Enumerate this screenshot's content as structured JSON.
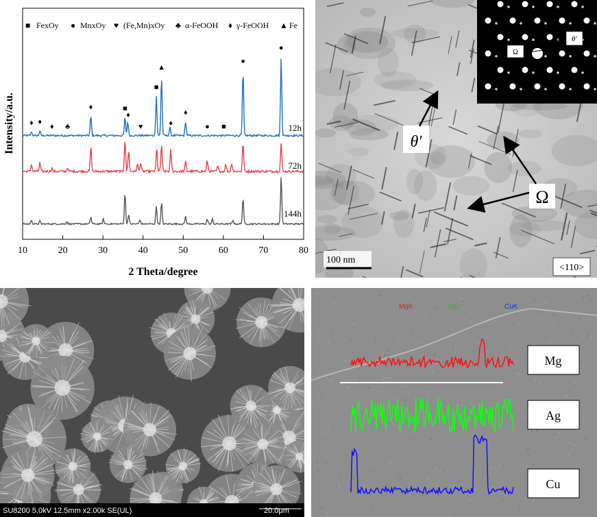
{
  "xrd": {
    "legend": [
      {
        "symbol": "■",
        "label": "FexOy"
      },
      {
        "symbol": "●",
        "label": "MnxOy"
      },
      {
        "symbol": "♥",
        "label": "(Fe,Mn)xOy"
      },
      {
        "symbol": "♣",
        "label": "α-FeOOH"
      },
      {
        "symbol": "♦",
        "label": "γ-FeOOH"
      },
      {
        "symbol": "▲",
        "label": "Fe"
      }
    ],
    "curve_labels": [
      "12h",
      "72h",
      "144h"
    ],
    "curve_colors": [
      "#1f6fbf",
      "#e0434b",
      "#555555"
    ]
  },
  "chart_data": {
    "type": "line",
    "xlabel": "2 Theta/degree",
    "ylabel": "Intensity/a.u.",
    "xlim": [
      10,
      80
    ],
    "x_ticks": [
      "10",
      "20",
      "30",
      "40",
      "50",
      "60",
      "70",
      "80"
    ],
    "series": [
      {
        "name": "12h",
        "peaks": [
          [
            12.2,
            5
          ],
          [
            14.3,
            6
          ],
          [
            27,
            25
          ],
          [
            35.5,
            23
          ],
          [
            36.2,
            18
          ],
          [
            43.3,
            50
          ],
          [
            44.6,
            75
          ],
          [
            46.7,
            10
          ],
          [
            50.6,
            18
          ],
          [
            64.9,
            83
          ],
          [
            74.4,
            100
          ]
        ]
      },
      {
        "name": "72h",
        "peaks": [
          [
            12.2,
            10
          ],
          [
            14.3,
            12
          ],
          [
            17.3,
            5
          ],
          [
            21.2,
            5
          ],
          [
            27,
            35
          ],
          [
            35.5,
            45
          ],
          [
            36.4,
            30
          ],
          [
            38.6,
            10
          ],
          [
            39.4,
            12
          ],
          [
            43.4,
            32
          ],
          [
            44.6,
            38
          ],
          [
            46.9,
            30
          ],
          [
            50.6,
            14
          ],
          [
            56,
            15
          ],
          [
            58.6,
            7
          ],
          [
            60.6,
            10
          ],
          [
            62.1,
            12
          ],
          [
            64.9,
            40
          ],
          [
            74.4,
            40
          ]
        ]
      },
      {
        "name": "144h",
        "peaks": [
          [
            12.2,
            8
          ],
          [
            14.3,
            6
          ],
          [
            21,
            5
          ],
          [
            27,
            15
          ],
          [
            30.1,
            10
          ],
          [
            35.5,
            65
          ],
          [
            36.4,
            20
          ],
          [
            39.2,
            9
          ],
          [
            43.3,
            37
          ],
          [
            44.6,
            45
          ],
          [
            50.6,
            16
          ],
          [
            56,
            10
          ],
          [
            57.3,
            10
          ],
          [
            62.4,
            8
          ],
          [
            64.9,
            55
          ],
          [
            74.4,
            100
          ]
        ]
      }
    ],
    "peak_markers": [
      {
        "symbol": "♦",
        "x": 12.2
      },
      {
        "symbol": "♦",
        "x": 14.3
      },
      {
        "symbol": "♦",
        "x": 17.3
      },
      {
        "symbol": "♣",
        "x": 21.2
      },
      {
        "symbol": "♦",
        "x": 27
      },
      {
        "symbol": "■",
        "x": 35.5
      },
      {
        "symbol": "♦",
        "x": 36.3
      },
      {
        "symbol": "♥",
        "x": 39.4
      },
      {
        "symbol": "■",
        "x": 43.3
      },
      {
        "symbol": "▲",
        "x": 44.6
      },
      {
        "symbol": "♦",
        "x": 46.9
      },
      {
        "symbol": "♦",
        "x": 50.6
      },
      {
        "symbol": "●",
        "x": 56
      },
      {
        "symbol": "■",
        "x": 60.1
      },
      {
        "symbol": "●",
        "x": 64.9
      },
      {
        "symbol": "●",
        "x": 74.4
      }
    ]
  },
  "tem": {
    "labels": {
      "theta": "θ′",
      "omega": "Ω",
      "inset_omega": "Ω",
      "inset_theta": "θ′"
    },
    "scale_bar": "100 nm",
    "zone_axis": "<110>"
  },
  "sem": {
    "info_bar": "SU8200 5.0kV 12.5mm x2.00k SE(UL)",
    "scale_label": "20.0μm"
  },
  "eds": {
    "top_labels": [
      {
        "text": "MgK",
        "color": "#e02020"
      },
      {
        "text": "AgL",
        "color": "#20c020"
      },
      {
        "text": "CuK",
        "color": "#2030e0"
      }
    ],
    "elements": [
      "Mg",
      "Ag",
      "Cu"
    ],
    "trace_colors": [
      "#ff1010",
      "#10ff10",
      "#1010ff"
    ]
  }
}
